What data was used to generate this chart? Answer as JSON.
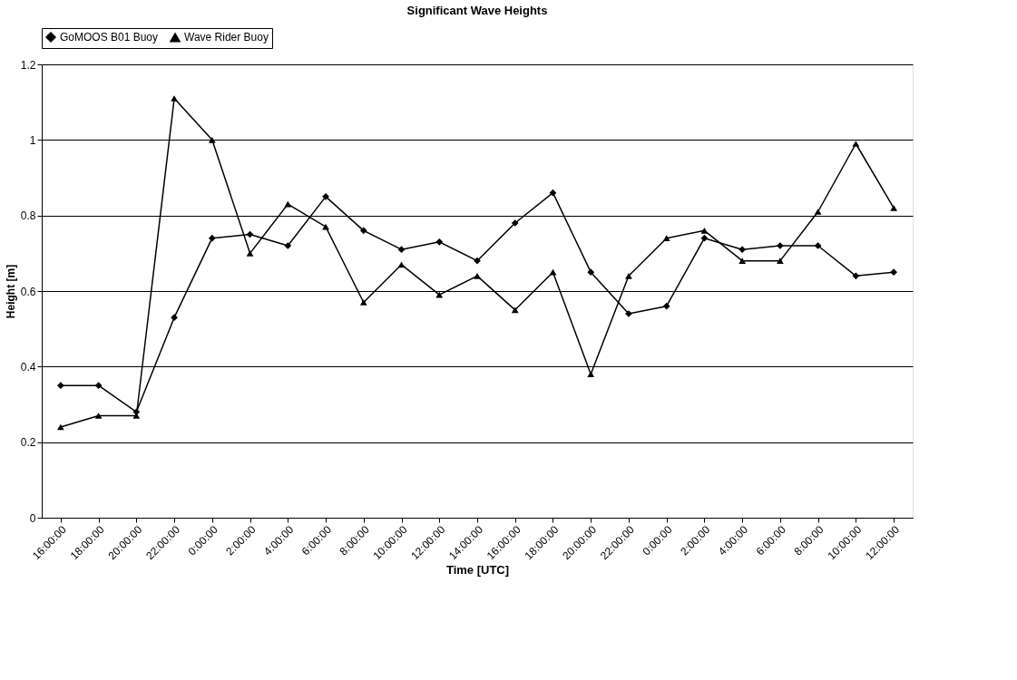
{
  "chart_data": {
    "type": "line",
    "title": "Significant Wave Heights",
    "xlabel": "Time [UTC]",
    "ylabel": "Height [m]",
    "categories": [
      "16:00:00",
      "18:00:00",
      "20:00:00",
      "22:00:00",
      "0:00:00",
      "2:00:00",
      "4:00:00",
      "6:00:00",
      "8:00:00",
      "10:00:00",
      "12:00:00",
      "14:00:00",
      "16:00:00",
      "18:00:00",
      "20:00:00",
      "22:00:00",
      "0:00:00",
      "2:00:00",
      "4:00:00",
      "6:00:00",
      "8:00:00",
      "10:00:00",
      "12:00:00"
    ],
    "series": [
      {
        "name": "GoMOOS B01 Buoy",
        "color": "#000000",
        "marker": "diamond",
        "values": [
          0.35,
          0.35,
          0.28,
          0.53,
          0.74,
          0.75,
          0.72,
          0.85,
          0.76,
          0.71,
          0.73,
          0.68,
          0.78,
          0.86,
          0.65,
          0.54,
          0.56,
          0.74,
          0.71,
          0.72,
          0.72,
          0.64,
          0.65
        ]
      },
      {
        "name": "Wave Rider Buoy",
        "color": "#000000",
        "marker": "triangle",
        "values": [
          0.24,
          0.27,
          0.27,
          1.11,
          1.0,
          0.7,
          0.83,
          0.77,
          0.57,
          0.67,
          0.59,
          0.64,
          0.55,
          0.65,
          0.38,
          0.64,
          0.74,
          0.76,
          0.68,
          0.68,
          0.81,
          0.99,
          0.82
        ]
      }
    ],
    "ylim": [
      0,
      1.2
    ],
    "yticks": [
      0,
      0.2,
      0.4,
      0.6,
      0.8,
      1,
      1.2
    ],
    "grid": "y",
    "legend": "top",
    "line_style": "solid"
  }
}
